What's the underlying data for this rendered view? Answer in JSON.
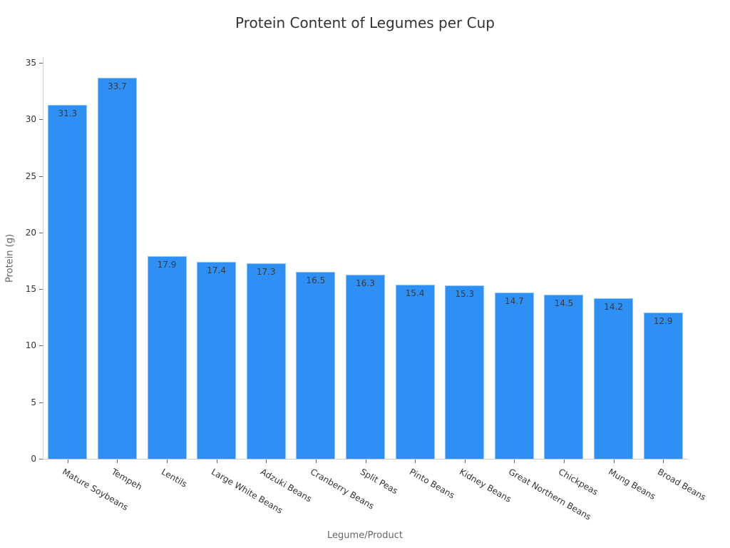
{
  "chart_data": {
    "type": "bar",
    "title": "Protein Content of Legumes per Cup",
    "xlabel": "Legume/Product",
    "ylabel": "Protein (g)",
    "ylim": [
      0,
      35
    ],
    "yticks": [
      0,
      5,
      10,
      15,
      20,
      25,
      30,
      35
    ],
    "grid": false,
    "legend": null,
    "bar_color": "#2e90f5",
    "categories": [
      "Mature Soybeans",
      "Tempeh",
      "Lentils",
      "Large White Beans",
      "Adzuki Beans",
      "Cranberry Beans",
      "Split Peas",
      "Pinto Beans",
      "Kidney Beans",
      "Great Northern Beans",
      "Chickpeas",
      "Mung Beans",
      "Broad Beans"
    ],
    "values": [
      31.3,
      33.7,
      17.9,
      17.4,
      17.3,
      16.5,
      16.3,
      15.4,
      15.3,
      14.7,
      14.5,
      14.2,
      12.9
    ],
    "value_labels": [
      "31.3",
      "33.7",
      "17.9",
      "17.4",
      "17.3",
      "16.5",
      "16.3",
      "15.4",
      "15.3",
      "14.7",
      "14.5",
      "14.2",
      "12.9"
    ]
  }
}
